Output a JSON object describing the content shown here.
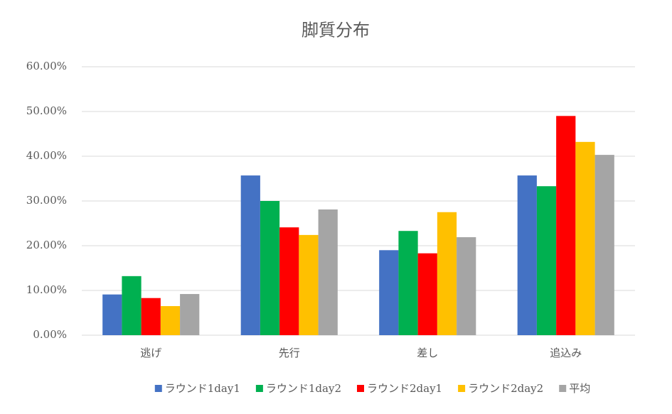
{
  "chart_data": {
    "type": "bar",
    "title": "脚質分布",
    "categories": [
      "逃げ",
      "先行",
      "差し",
      "追込み"
    ],
    "series": [
      {
        "name": "ラウンド1day1",
        "color": "#4472c4",
        "values": [
          9.1,
          35.7,
          19.0,
          35.7
        ]
      },
      {
        "name": "ラウンド1day2",
        "color": "#00b050",
        "values": [
          13.2,
          30.0,
          23.3,
          33.3
        ]
      },
      {
        "name": "ラウンド2day1",
        "color": "#ff0000",
        "values": [
          8.3,
          24.1,
          18.3,
          49.0
        ]
      },
      {
        "name": "ラウンド2day2",
        "color": "#ffc000",
        "values": [
          6.5,
          22.4,
          27.5,
          43.2
        ]
      },
      {
        "name": "平均",
        "color": "#a5a5a5",
        "values": [
          9.2,
          28.1,
          21.9,
          40.3
        ]
      }
    ],
    "ylim": [
      0,
      60
    ],
    "yticks": [
      {
        "value": 0,
        "label": "0.00%"
      },
      {
        "value": 10,
        "label": "10.00%"
      },
      {
        "value": 20,
        "label": "20.00%"
      },
      {
        "value": 30,
        "label": "30.00%"
      },
      {
        "value": 40,
        "label": "40.00%"
      },
      {
        "value": 50,
        "label": "50.00%"
      },
      {
        "value": 60,
        "label": "60.00%"
      }
    ],
    "grid": true,
    "legend": "bottom"
  }
}
